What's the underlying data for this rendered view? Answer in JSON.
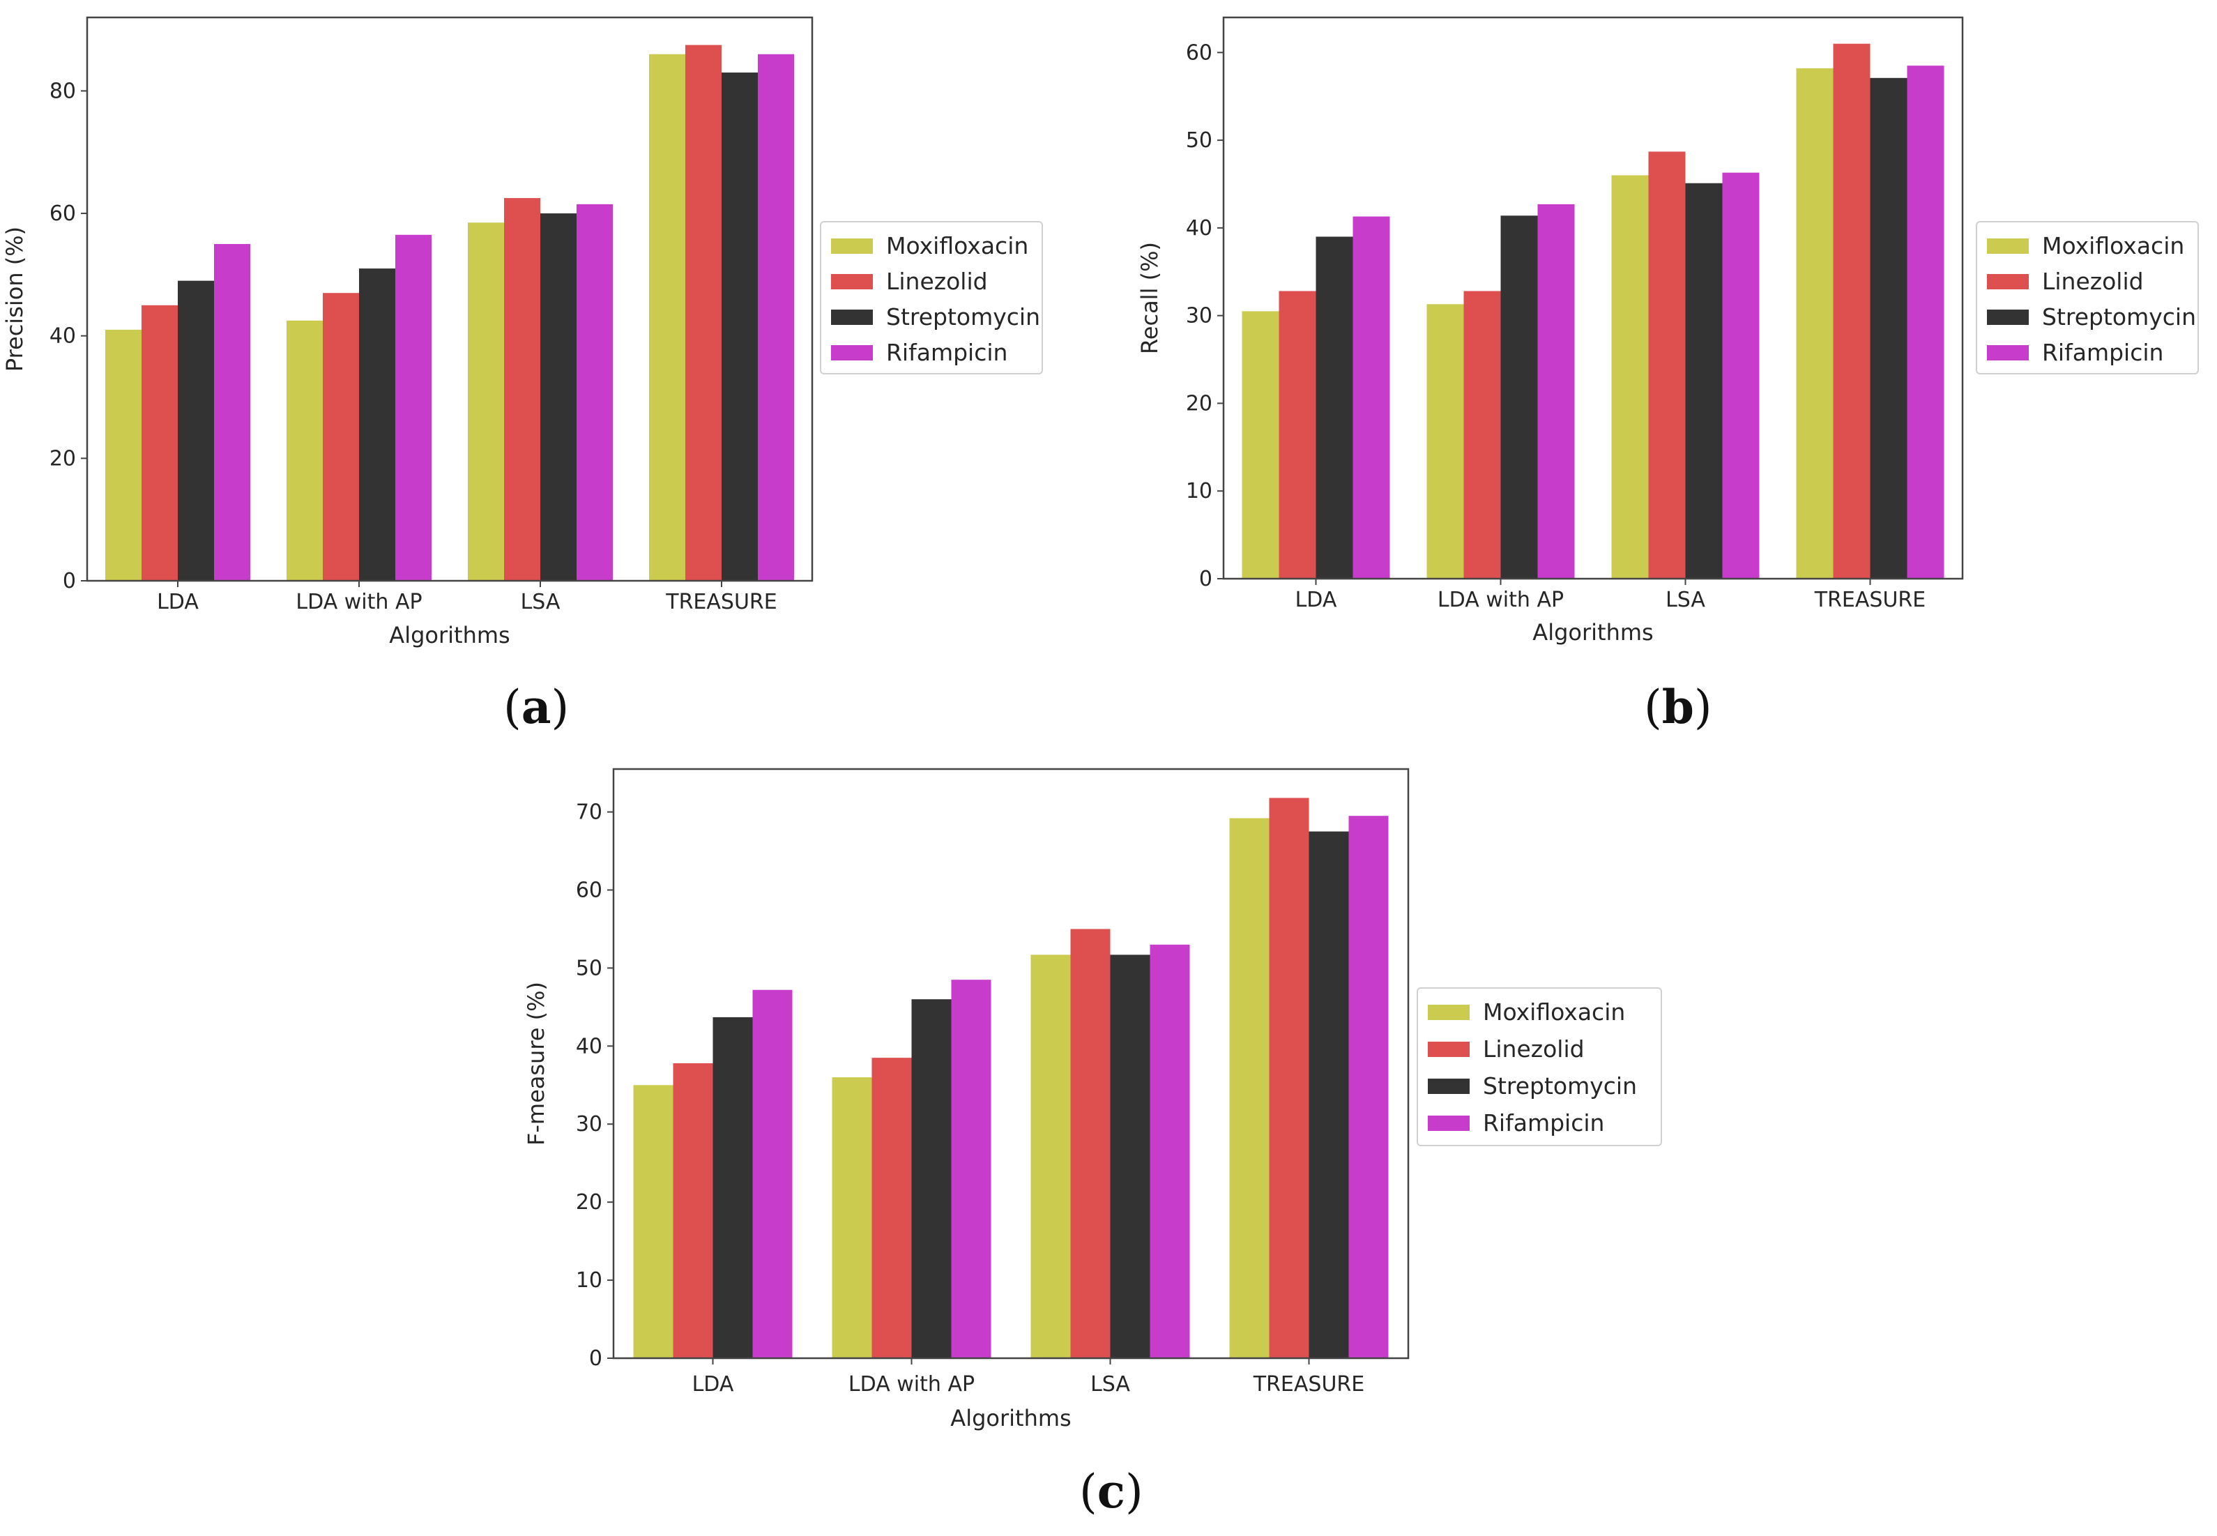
{
  "colors": {
    "Moxifloxacin": "#cbcb50",
    "Linezolid": "#de4f4f",
    "Streptomycin": "#333333",
    "Rifampicin": "#c83ccc",
    "axis": "#444444",
    "text": "#262626"
  },
  "chart_data": [
    {
      "type": "bar",
      "panel": "a",
      "categories": [
        "LDA",
        "LDA with AP",
        "LSA",
        "TREASURE"
      ],
      "series": [
        {
          "name": "Moxifloxacin",
          "values": [
            41,
            42.5,
            58.5,
            86
          ]
        },
        {
          "name": "Linezolid",
          "values": [
            45,
            47,
            62.5,
            87.5
          ]
        },
        {
          "name": "Streptomycin",
          "values": [
            49,
            51,
            60,
            83
          ]
        },
        {
          "name": "Rifampicin",
          "values": [
            55,
            56.5,
            61.5,
            86
          ]
        }
      ],
      "title": "",
      "xlabel": "Algorithms",
      "ylabel": "Precision (%)",
      "ylim": [
        0,
        92
      ],
      "yticks": [
        0,
        20,
        40,
        60,
        80
      ],
      "legend": "outside-right",
      "grid": false
    },
    {
      "type": "bar",
      "panel": "b",
      "categories": [
        "LDA",
        "LDA with AP",
        "LSA",
        "TREASURE"
      ],
      "series": [
        {
          "name": "Moxifloxacin",
          "values": [
            30.5,
            31.3,
            46,
            58.2
          ]
        },
        {
          "name": "Linezolid",
          "values": [
            32.8,
            32.8,
            48.7,
            61
          ]
        },
        {
          "name": "Streptomycin",
          "values": [
            39,
            41.4,
            45.1,
            57.1
          ]
        },
        {
          "name": "Rifampicin",
          "values": [
            41.3,
            42.7,
            46.3,
            58.5
          ]
        }
      ],
      "title": "",
      "xlabel": "Algorithms",
      "ylabel": "Recall (%)",
      "ylim": [
        0,
        64
      ],
      "yticks": [
        0,
        10,
        20,
        30,
        40,
        50,
        60
      ],
      "legend": "outside-right",
      "grid": false
    },
    {
      "type": "bar",
      "panel": "c",
      "categories": [
        "LDA",
        "LDA with AP",
        "LSA",
        "TREASURE"
      ],
      "series": [
        {
          "name": "Moxifloxacin",
          "values": [
            35,
            36,
            51.7,
            69.2
          ]
        },
        {
          "name": "Linezolid",
          "values": [
            37.8,
            38.5,
            55,
            71.8
          ]
        },
        {
          "name": "Streptomycin",
          "values": [
            43.7,
            46,
            51.7,
            67.5
          ]
        },
        {
          "name": "Rifampicin",
          "values": [
            47.2,
            48.5,
            53,
            69.5
          ]
        }
      ],
      "title": "",
      "xlabel": "Algorithms",
      "ylabel": "F-measure (%)",
      "ylim": [
        0,
        75.5
      ],
      "yticks": [
        0,
        10,
        20,
        30,
        40,
        50,
        60,
        70
      ],
      "legend": "outside-right",
      "grid": false
    }
  ],
  "panel_labels": {
    "a": {
      "open": "(",
      "letter": "a",
      "close": ")"
    },
    "b": {
      "open": "(",
      "letter": "b",
      "close": ")"
    },
    "c": {
      "open": "(",
      "letter": "c",
      "close": ")"
    }
  }
}
